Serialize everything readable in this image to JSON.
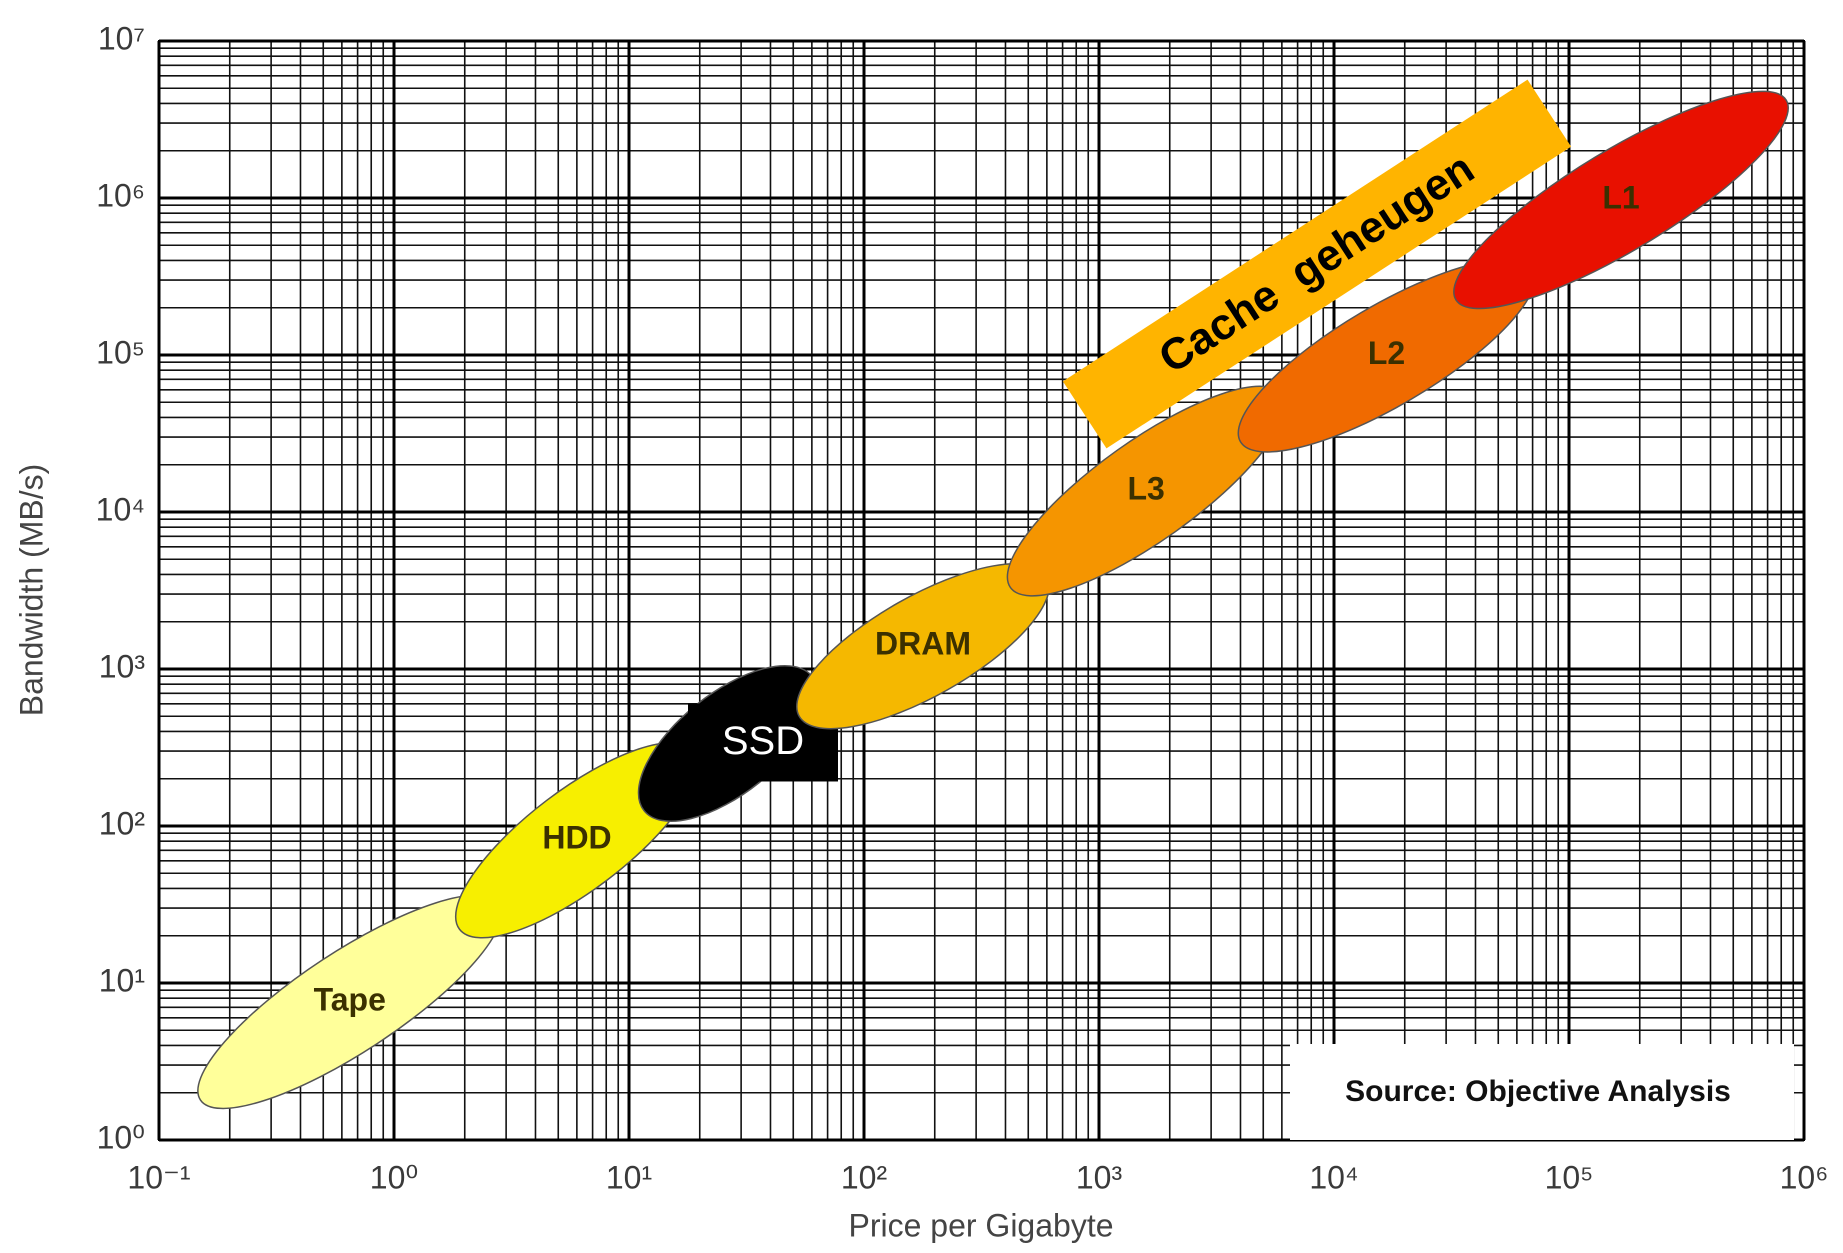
{
  "chart_data": {
    "type": "ellipse",
    "x_label": "Price per Gigabyte",
    "y_label": "Bandwidth (MB/s)",
    "log_x": true,
    "log_y": true,
    "grid": true,
    "minor_grid": true,
    "xlim": [
      0.1,
      1000000
    ],
    "ylim": [
      1,
      10000000
    ],
    "xticks": [
      {
        "value": 0.1,
        "label": "10⁻¹"
      },
      {
        "value": 1,
        "label": "10⁰"
      },
      {
        "value": 10,
        "label": "10¹"
      },
      {
        "value": 100,
        "label": "10²"
      },
      {
        "value": 1000,
        "label": "10³"
      },
      {
        "value": 10000,
        "label": "10⁴"
      },
      {
        "value": 100000,
        "label": "10⁵"
      },
      {
        "value": 1000000,
        "label": "10⁶"
      }
    ],
    "yticks": [
      {
        "value": 1,
        "label": "10⁰"
      },
      {
        "value": 10,
        "label": "10¹"
      },
      {
        "value": 100,
        "label": "10²"
      },
      {
        "value": 1000,
        "label": "10³"
      },
      {
        "value": 10000,
        "label": "10⁴"
      },
      {
        "value": 100000,
        "label": "10⁵"
      },
      {
        "value": 1000000,
        "label": "10⁶"
      },
      {
        "value": 10000000,
        "label": "10⁷"
      }
    ],
    "series": [
      {
        "name": "Tape",
        "color": "#ffff9a",
        "x": [
          0.15,
          2.8
        ],
        "y": [
          1.8,
          32
        ]
      },
      {
        "name": "HDD",
        "color": "#f7ef00",
        "x": [
          1.9,
          19
        ],
        "y": [
          22,
          300
        ]
      },
      {
        "name": "SSD",
        "color": "#000000",
        "x": [
          11.6,
          60
        ],
        "y": [
          125,
          900
        ]
      },
      {
        "name": "DRAM",
        "color": "#f5b800",
        "x": [
          53,
          600
        ],
        "y": [
          500,
          3900
        ]
      },
      {
        "name": "L3",
        "color": "#f59500",
        "x": [
          420,
          6000
        ],
        "y": [
          3300,
          56000
        ]
      },
      {
        "name": "L2",
        "color": "#f06a00",
        "x": [
          4000,
          70000
        ],
        "y": [
          28000,
          350000
        ]
      },
      {
        "name": "L1",
        "color": "#e81000",
        "x": [
          33000,
          840000
        ],
        "y": [
          225000,
          4200000
        ]
      }
    ],
    "annotations": [
      "Cache  geheugen",
      "Source: Objective Analysis"
    ]
  }
}
